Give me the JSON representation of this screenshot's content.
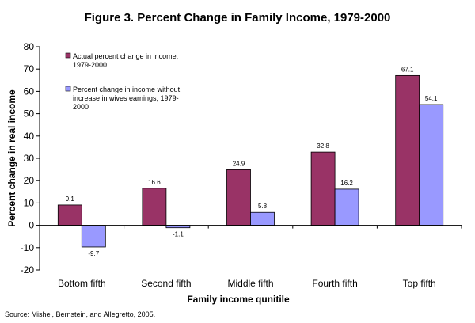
{
  "chart_data": {
    "type": "bar",
    "title": "Figure 3. Percent Change in Family Income, 1979-2000",
    "xlabel": "Family income qunitile",
    "ylabel": "Percent change in real income",
    "categories": [
      "Bottom fifth",
      "Second fifth",
      "Middle fifth",
      "Fourth fifth",
      "Top fifth"
    ],
    "series": [
      {
        "name_lines": [
          "Actual percent change in income,",
          "1979-2000"
        ],
        "values": [
          9.1,
          16.6,
          24.9,
          32.8,
          67.1
        ],
        "color": "#993366"
      },
      {
        "name_lines": [
          "Percent change in income without",
          "increase in wives earnings, 1979-",
          "2000"
        ],
        "values": [
          -9.7,
          -1.1,
          5.8,
          16.2,
          54.1
        ],
        "color": "#9999ff"
      }
    ],
    "ylim": [
      -20,
      80
    ],
    "yticks": [
      -20,
      -10,
      0,
      10,
      20,
      30,
      40,
      50,
      60,
      70,
      80
    ],
    "data_labels": true,
    "grid": false,
    "legend_position": "top-left"
  },
  "source_note": "Source: Mishel, Bernstein, and Allegretto, 2005."
}
